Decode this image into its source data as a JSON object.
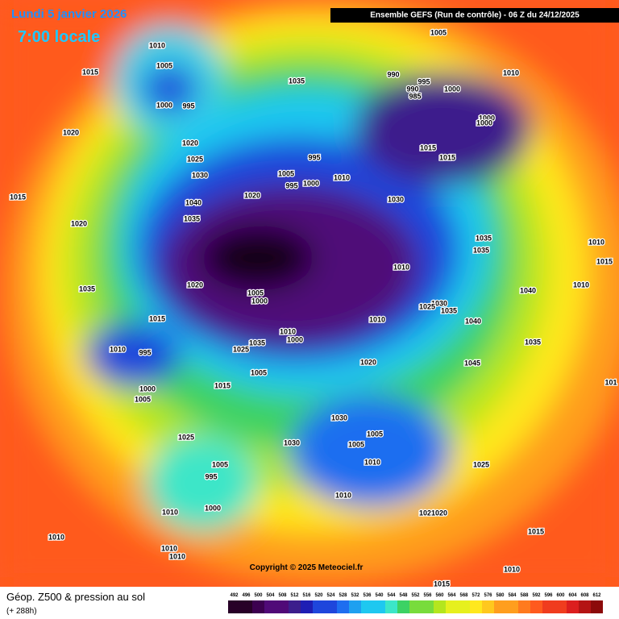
{
  "header": {
    "date": "Lundi 5 janvier 2026",
    "time": "7:00 locale",
    "run": "Ensemble GEFS  (Run de contrôle)  -  06 Z du 24/12/2025"
  },
  "footer": {
    "title": "Géop. Z500 & pression au sol",
    "lead": "(+ 288h)",
    "copyright": "Copyright © 2025 Meteociel.fr"
  },
  "colorbar": {
    "ticks": [
      492,
      496,
      500,
      504,
      508,
      512,
      516,
      520,
      524,
      528,
      532,
      536,
      540,
      544,
      548,
      552,
      556,
      560,
      564,
      568,
      572,
      576,
      580,
      584,
      588,
      592,
      596,
      600,
      604,
      608,
      612
    ]
  },
  "isobar_labels": [
    "1010",
    "1005",
    "1015",
    "1000",
    "995",
    "1020",
    "1020",
    "1025",
    "1030",
    "1015",
    "1020",
    "1040",
    "1035",
    "1020",
    "1005",
    "995",
    "995",
    "1000",
    "1010",
    "1035",
    "1005",
    "990",
    "995",
    "990",
    "985",
    "1000",
    "1010",
    "1000",
    "1000",
    "1015",
    "1015",
    "1030",
    "1035",
    "1035",
    "1010",
    "1015",
    "1010",
    "1040",
    "1010",
    "1020",
    "1005",
    "1000",
    "1035",
    "1015",
    "1030",
    "1035",
    "1025",
    "1040",
    "1010",
    "1010",
    "1000",
    "1035",
    "1025",
    "1010",
    "995",
    "1020",
    "1045",
    "1035",
    "1005",
    "1015",
    "1000",
    "1005",
    "1030",
    "1005",
    "1005",
    "1010",
    "1025",
    "1030",
    "1005",
    "995",
    "1025",
    "1000",
    "1010",
    "1010",
    "1020",
    "1020",
    "1015",
    "1010",
    "1010",
    "1010",
    "1010",
    "1015",
    "101"
  ]
}
